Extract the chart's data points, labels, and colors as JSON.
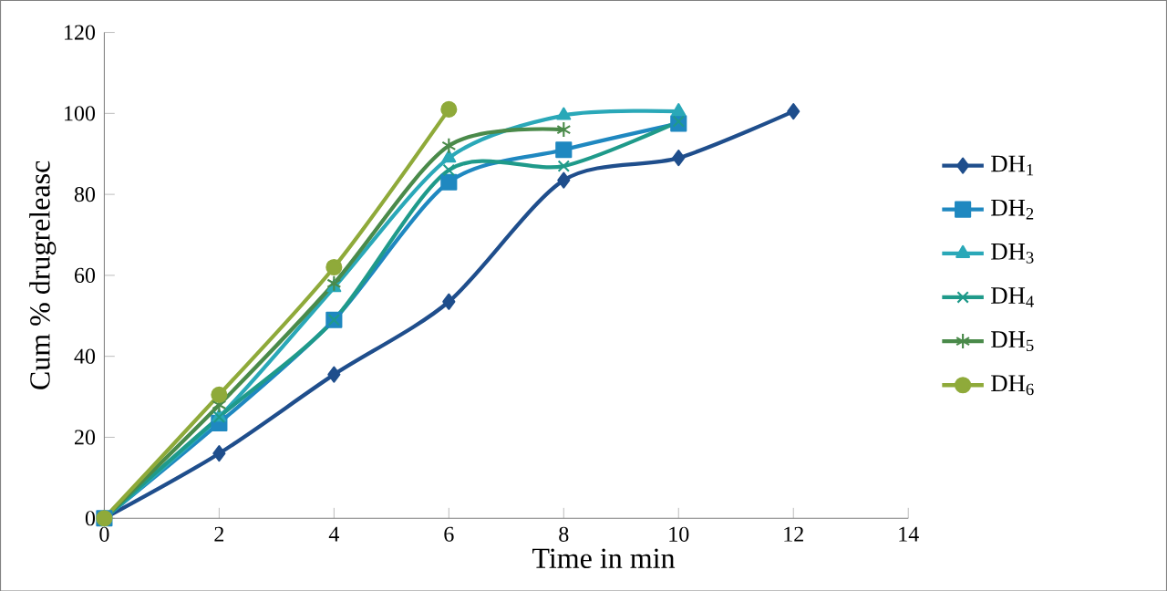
{
  "chart_data": {
    "type": "line",
    "xlabel": "Time in min",
    "ylabel": "Cum % drugreleasc",
    "xlim": [
      0,
      14
    ],
    "xticks": [
      0,
      2,
      4,
      6,
      8,
      10,
      12,
      14
    ],
    "ylim": [
      0,
      120
    ],
    "yticks": [
      0,
      20,
      40,
      60,
      80,
      100,
      120
    ],
    "grid": false,
    "legend": "right",
    "series": [
      {
        "name": "DH$_{1}$",
        "color": "#1f4e8c",
        "marker": "diamond",
        "x": [
          0,
          2,
          4,
          6,
          8,
          10,
          12
        ],
        "values": [
          0,
          16,
          35.5,
          53.5,
          83.5,
          89,
          100.5
        ]
      },
      {
        "name": "DH$_{2}$",
        "color": "#1f88c0",
        "marker": "square",
        "x": [
          0,
          2,
          4,
          6,
          8,
          10
        ],
        "values": [
          0,
          23.5,
          49,
          83,
          91,
          97.5
        ]
      },
      {
        "name": "DH$_{3}$",
        "color": "#2aa8b8",
        "marker": "triangle",
        "x": [
          0,
          2,
          4,
          6,
          8,
          10
        ],
        "values": [
          0,
          25,
          57,
          89,
          99.5,
          100.5
        ]
      },
      {
        "name": "DH$_{4}$",
        "color": "#1f9a8a",
        "marker": "cross",
        "x": [
          0,
          2,
          4,
          6,
          8,
          10
        ],
        "values": [
          0,
          25,
          49,
          86,
          87,
          98
        ]
      },
      {
        "name": "DH$_{5}$",
        "color": "#4a8a4a",
        "marker": "cross",
        "x": [
          0,
          2,
          4,
          6,
          8
        ],
        "values": [
          0,
          28,
          58,
          92,
          96
        ]
      },
      {
        "name": "DH$_{6}$",
        "color": "#8faa3a",
        "marker": "circle",
        "x": [
          0,
          2,
          4,
          6
        ],
        "values": [
          0,
          30.5,
          62,
          101
        ]
      }
    ]
  }
}
